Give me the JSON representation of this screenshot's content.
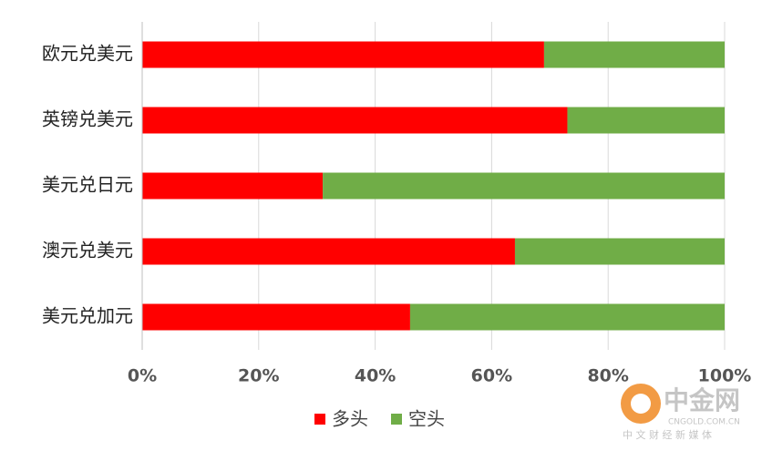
{
  "chart_data": {
    "type": "stacked-barh",
    "categories": [
      "欧元兑美元",
      "英镑兑美元",
      "美元兑日元",
      "澳元兑美元",
      "美元兑加元"
    ],
    "series": [
      {
        "name": "多头",
        "color": "#ff0000",
        "values": [
          69,
          73,
          31,
          64,
          46
        ]
      },
      {
        "name": "空头",
        "color": "#70ad47",
        "values": [
          31,
          27,
          69,
          36,
          54
        ]
      }
    ],
    "xlim": [
      0,
      100
    ],
    "xticks": [
      {
        "value": 0,
        "label": "0%"
      },
      {
        "value": 20,
        "label": "20%"
      },
      {
        "value": 40,
        "label": "40%"
      },
      {
        "value": 60,
        "label": "60%"
      },
      {
        "value": 80,
        "label": "80%"
      },
      {
        "value": 100,
        "label": "100%"
      }
    ],
    "grid": true,
    "legend": "bottom",
    "watermark": {
      "name": "中金网",
      "url": "CNGOLD.COM.CN",
      "tagline": "中 文 财 经 新 媒 体"
    }
  }
}
